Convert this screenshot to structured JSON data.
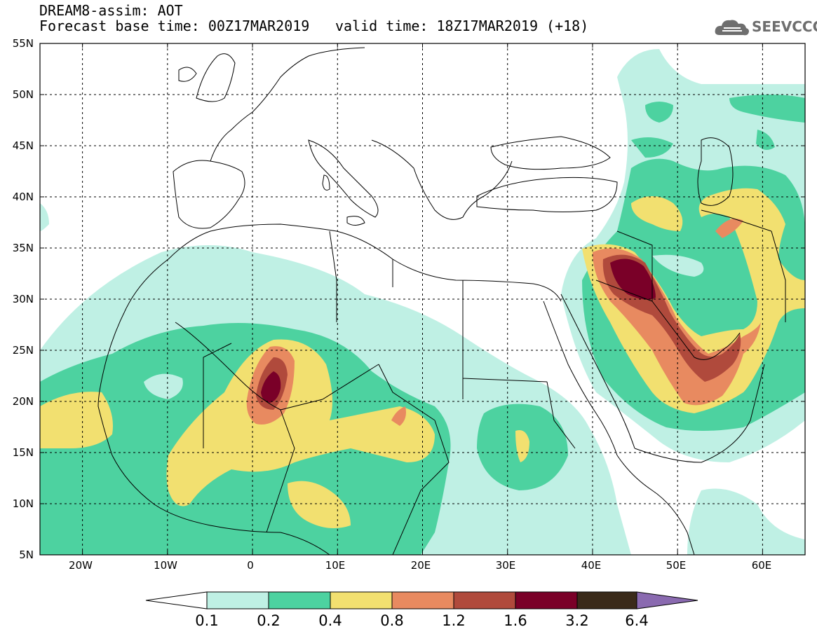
{
  "header": {
    "line1": "DREAM8-assim: AOT",
    "line2": "Forecast base time: 00Z17MAR2019",
    "line3": "valid time: 18Z17MAR2019 (+18)"
  },
  "logo": {
    "text": "SEEVCCC",
    "icon": "cloud-icon"
  },
  "axes": {
    "lat_labels": [
      "55N",
      "50N",
      "45N",
      "40N",
      "35N",
      "30N",
      "25N",
      "20N",
      "15N",
      "10N",
      "5N"
    ],
    "lon_labels": [
      "20W",
      "10W",
      "0",
      "10E",
      "20E",
      "30E",
      "40E",
      "50E",
      "60E"
    ]
  },
  "colorbar": {
    "labels": [
      "0.1",
      "0.2",
      "0.4",
      "0.8",
      "1.2",
      "1.6",
      "3.2",
      "6.4"
    ],
    "colors": [
      "#ffffff",
      "#bff0e4",
      "#4dd2a0",
      "#f2e070",
      "#e88a60",
      "#b04a3c",
      "#7a0028",
      "#3a2a1a",
      "#8a6ab0"
    ]
  },
  "map": {
    "variable": "Aerosol Optical Thickness (AOT)",
    "lon_range": [
      -25,
      65
    ],
    "lat_range": [
      5,
      55
    ]
  }
}
